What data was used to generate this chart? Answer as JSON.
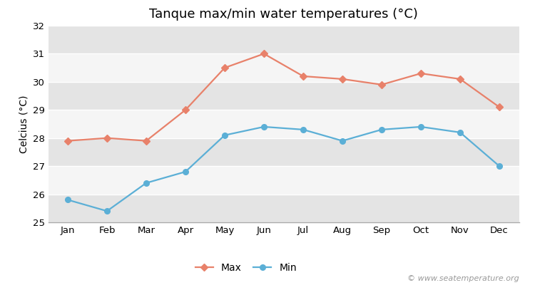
{
  "title": "Tanque max/min water temperatures (°C)",
  "ylabel": "Celcius (°C)",
  "months": [
    "Jan",
    "Feb",
    "Mar",
    "Apr",
    "May",
    "Jun",
    "Jul",
    "Aug",
    "Sep",
    "Oct",
    "Nov",
    "Dec"
  ],
  "max_values": [
    27.9,
    28.0,
    27.9,
    29.0,
    30.5,
    31.0,
    30.2,
    30.1,
    29.9,
    30.3,
    30.1,
    29.1
  ],
  "min_values": [
    25.8,
    25.4,
    26.4,
    26.8,
    28.1,
    28.4,
    28.3,
    27.9,
    28.3,
    28.4,
    28.2,
    27.0
  ],
  "max_color": "#e8816a",
  "min_color": "#5bafd6",
  "bg_color": "#ffffff",
  "plot_bg_color": "#ebebeb",
  "band_color_light": "#f5f5f5",
  "band_color_dark": "#e4e4e4",
  "grid_line_color": "#ffffff",
  "ylim": [
    25,
    32
  ],
  "yticks": [
    25,
    26,
    27,
    28,
    29,
    30,
    31,
    32
  ],
  "legend_labels": [
    "Max",
    "Min"
  ],
  "watermark": "© www.seatemperature.org",
  "title_fontsize": 13,
  "label_fontsize": 10,
  "tick_fontsize": 9.5,
  "legend_fontsize": 10,
  "watermark_fontsize": 8
}
